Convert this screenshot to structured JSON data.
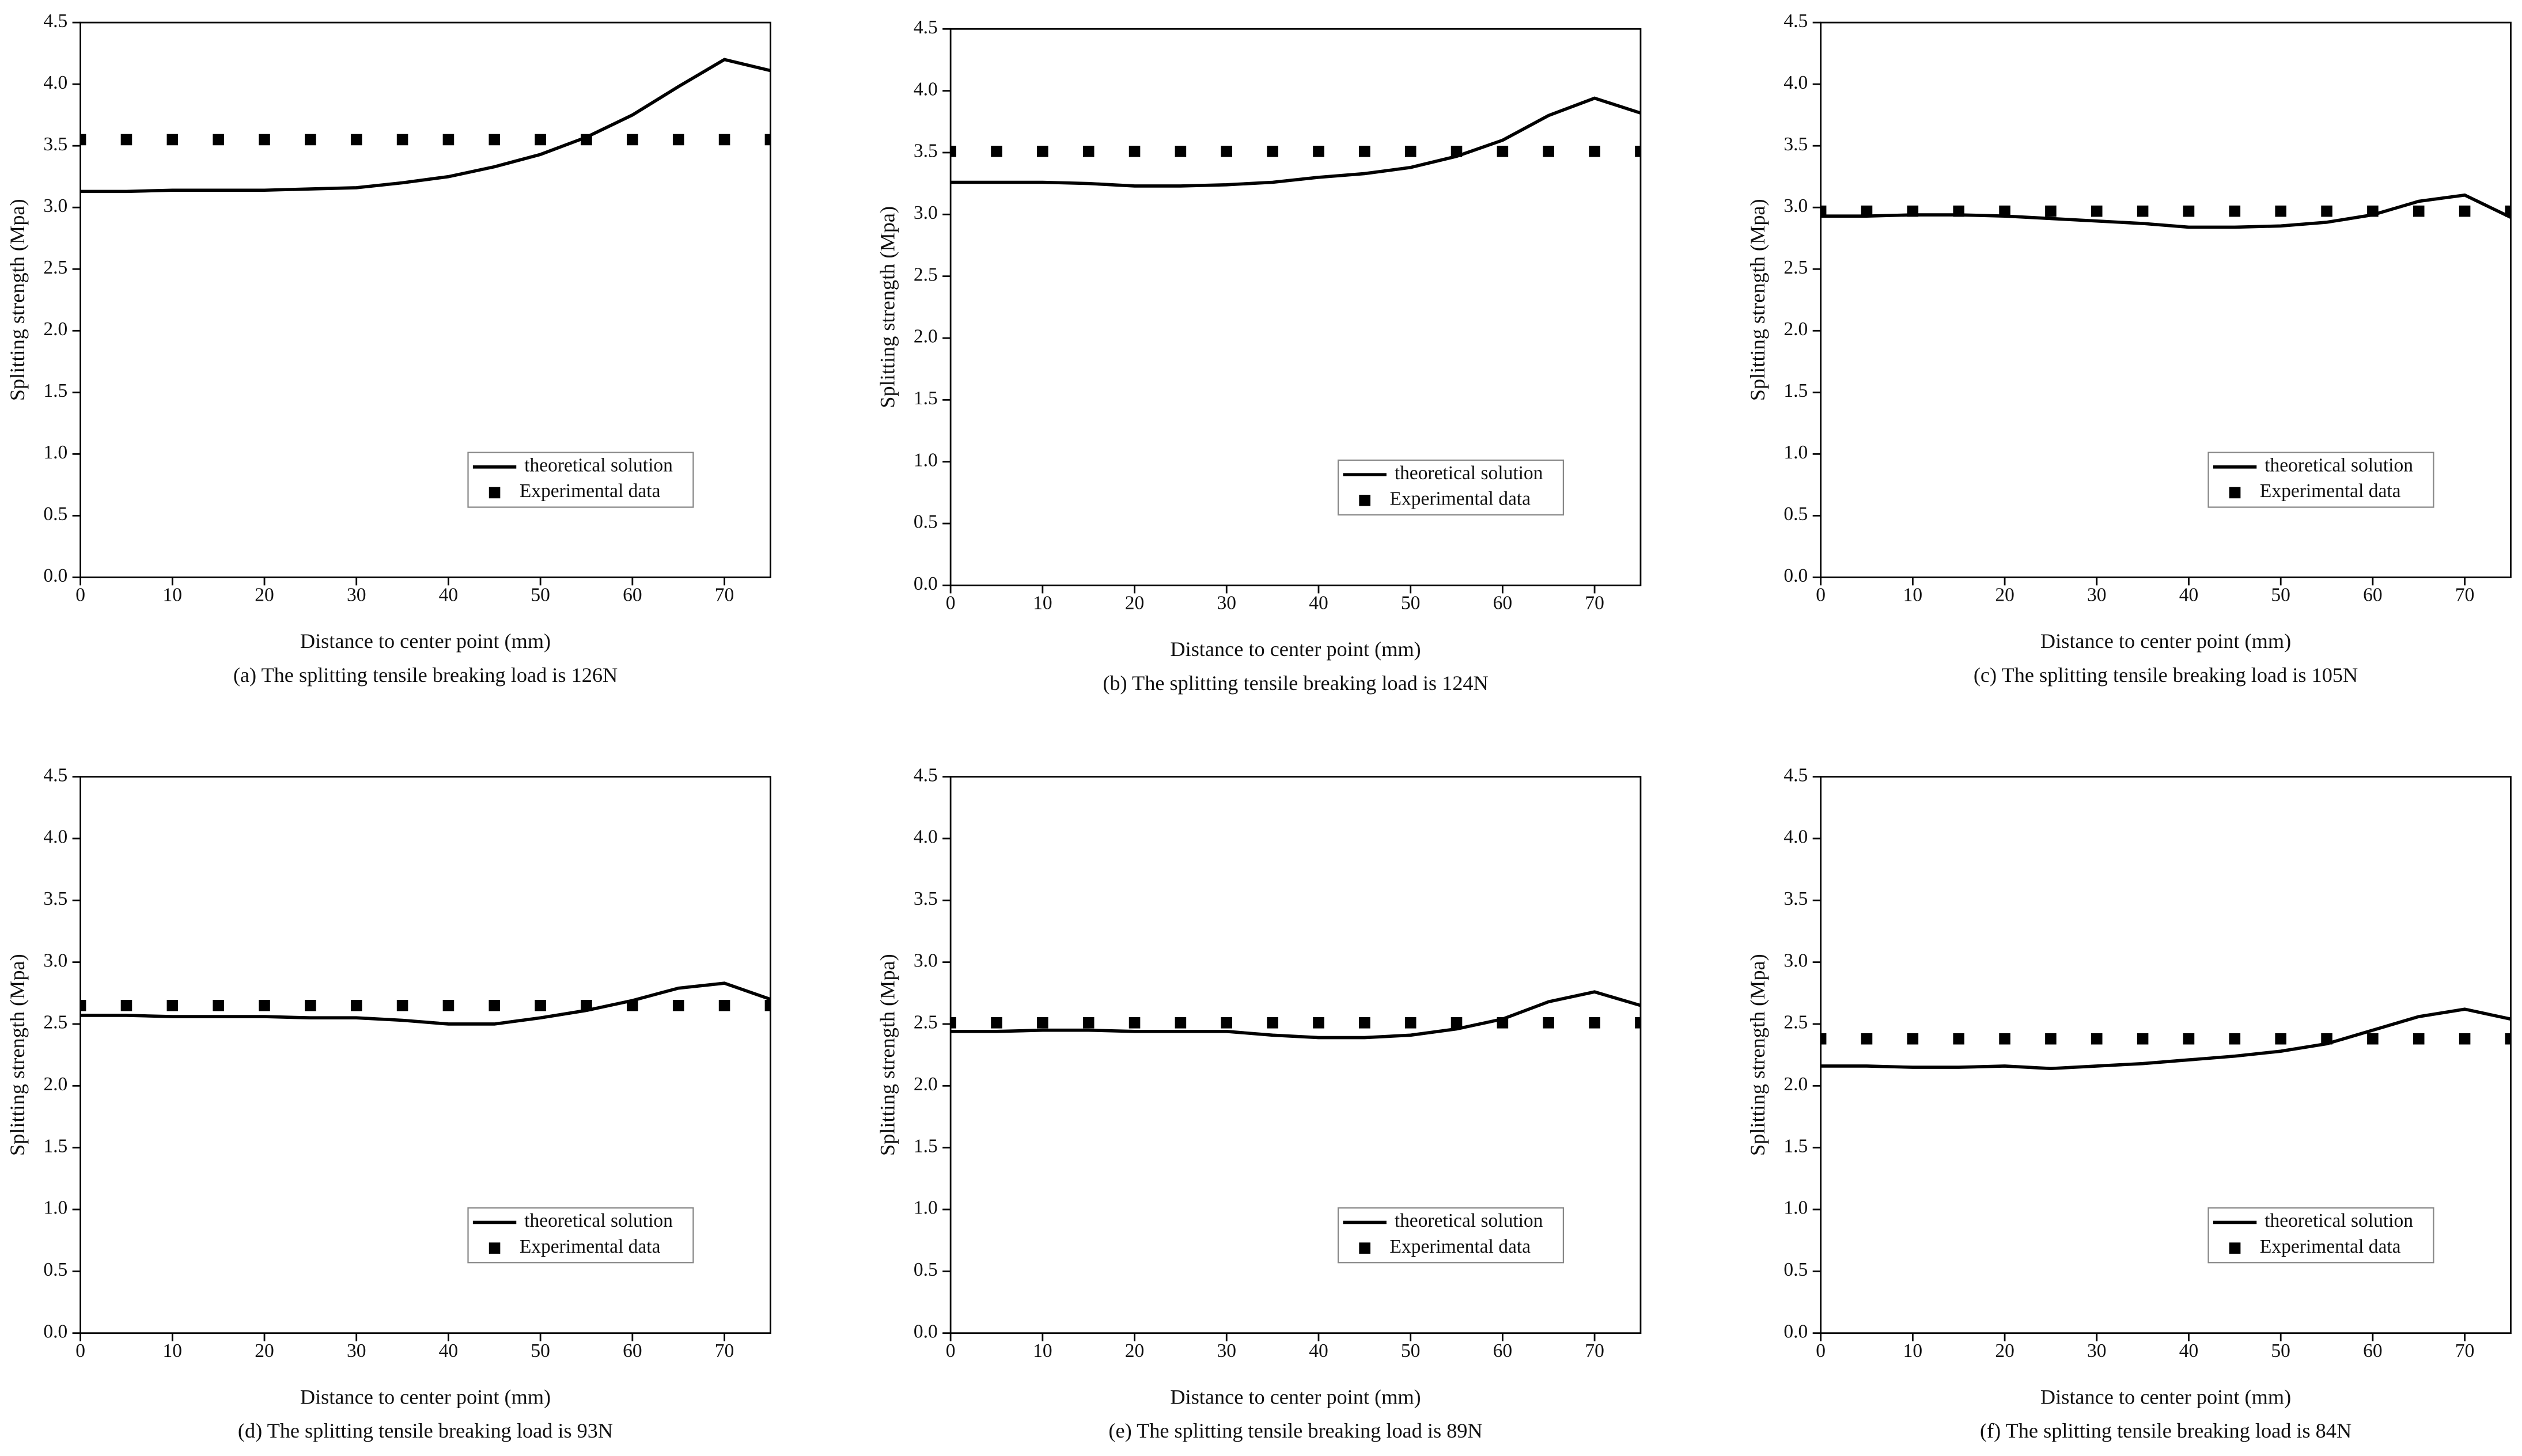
{
  "chart_data": [
    {
      "type": "line",
      "caption": "(a) The splitting tensile breaking load is 126N",
      "x_label": "Distance to center point (mm)",
      "y_label": "Splitting strength (Mpa)",
      "x": [
        0,
        5,
        10,
        15,
        20,
        25,
        30,
        35,
        40,
        45,
        50,
        55,
        60,
        65,
        70,
        75
      ],
      "series": [
        {
          "name": "theoretical solution",
          "color": "#000000",
          "style": "line",
          "values": [
            3.13,
            3.13,
            3.14,
            3.14,
            3.14,
            3.15,
            3.16,
            3.2,
            3.25,
            3.33,
            3.43,
            3.57,
            3.75,
            3.98,
            4.2,
            4.11
          ]
        },
        {
          "name": "Experimental data",
          "color": "#000000",
          "style": "markers",
          "values": [
            3.55,
            3.55,
            3.55,
            3.55,
            3.55,
            3.55,
            3.55,
            3.55,
            3.55,
            3.55,
            3.55,
            3.55,
            3.55,
            3.55,
            3.55,
            3.55
          ]
        }
      ],
      "xlim": [
        0,
        75
      ],
      "ylim": [
        0,
        4.5
      ],
      "xticks": [
        0,
        10,
        20,
        30,
        40,
        50,
        60,
        70
      ],
      "yticks": [
        {
          "value": 0,
          "label": "0.0"
        },
        0.5,
        {
          "value": 1,
          "label": "1.0"
        },
        1.5,
        {
          "value": 2,
          "label": "2.0"
        },
        2.5,
        {
          "value": 3,
          "label": "3.0"
        },
        3.5,
        {
          "value": 4,
          "label": "4.0"
        },
        4.5
      ],
      "legend": "lower right"
    },
    {
      "type": "line",
      "caption": "(b) The splitting tensile breaking load is 124N",
      "x_label": "Distance to center point (mm)",
      "y_label": "Splitting strength (Mpa)",
      "x": [
        0,
        5,
        10,
        15,
        20,
        25,
        30,
        35,
        40,
        45,
        50,
        55,
        60,
        65,
        70,
        75
      ],
      "series": [
        {
          "name": "theoretical solution",
          "color": "#000000",
          "style": "line",
          "values": [
            3.26,
            3.26,
            3.26,
            3.25,
            3.23,
            3.23,
            3.24,
            3.26,
            3.3,
            3.33,
            3.38,
            3.47,
            3.6,
            3.8,
            3.94,
            3.82
          ]
        },
        {
          "name": "Experimental data",
          "color": "#000000",
          "style": "markers",
          "values": [
            3.51,
            3.51,
            3.51,
            3.51,
            3.51,
            3.51,
            3.51,
            3.51,
            3.51,
            3.51,
            3.51,
            3.51,
            3.51,
            3.51,
            3.51,
            3.51
          ]
        }
      ],
      "xlim": [
        0,
        75
      ],
      "ylim": [
        0,
        4.5
      ],
      "xticks": [
        0,
        10,
        20,
        30,
        40,
        50,
        60,
        70
      ],
      "yticks": [
        {
          "value": 0,
          "label": "0.0"
        },
        0.5,
        {
          "value": 1,
          "label": "1.0"
        },
        1.5,
        {
          "value": 2,
          "label": "2.0"
        },
        2.5,
        {
          "value": 3,
          "label": "3.0"
        },
        3.5,
        {
          "value": 4,
          "label": "4.0"
        },
        4.5
      ],
      "legend": "lower right"
    },
    {
      "type": "line",
      "caption": "(c) The splitting tensile breaking load is 105N",
      "x_label": "Distance to center point (mm)",
      "y_label": "Splitting strength (Mpa)",
      "x": [
        0,
        5,
        10,
        15,
        20,
        25,
        30,
        35,
        40,
        45,
        50,
        55,
        60,
        65,
        70,
        75
      ],
      "series": [
        {
          "name": "theoretical solution",
          "color": "#000000",
          "style": "line",
          "values": [
            2.93,
            2.93,
            2.94,
            2.94,
            2.93,
            2.91,
            2.89,
            2.87,
            2.84,
            2.84,
            2.85,
            2.88,
            2.94,
            3.05,
            3.1,
            2.92
          ]
        },
        {
          "name": "Experimental data",
          "color": "#000000",
          "style": "markers",
          "values": [
            2.97,
            2.97,
            2.97,
            2.97,
            2.97,
            2.97,
            2.97,
            2.97,
            2.97,
            2.97,
            2.97,
            2.97,
            2.97,
            2.97,
            2.97,
            2.97
          ]
        }
      ],
      "xlim": [
        0,
        75
      ],
      "ylim": [
        0,
        4.5
      ],
      "xticks": [
        0,
        10,
        20,
        30,
        40,
        50,
        60,
        70
      ],
      "yticks": [
        {
          "value": 0,
          "label": "0.0"
        },
        0.5,
        {
          "value": 1,
          "label": "1.0"
        },
        1.5,
        {
          "value": 2,
          "label": "2.0"
        },
        2.5,
        {
          "value": 3,
          "label": "3.0"
        },
        3.5,
        {
          "value": 4,
          "label": "4.0"
        },
        4.5
      ],
      "legend": "lower right"
    },
    {
      "type": "line",
      "caption": "(d) The splitting tensile breaking load is 93N",
      "x_label": "Distance to center point (mm)",
      "y_label": "Splitting strength (Mpa)",
      "x": [
        0,
        5,
        10,
        15,
        20,
        25,
        30,
        35,
        40,
        45,
        50,
        55,
        60,
        65,
        70,
        75
      ],
      "series": [
        {
          "name": "theoretical solution",
          "color": "#000000",
          "style": "line",
          "values": [
            2.57,
            2.57,
            2.56,
            2.56,
            2.56,
            2.55,
            2.55,
            2.53,
            2.5,
            2.5,
            2.55,
            2.61,
            2.69,
            2.79,
            2.83,
            2.7
          ]
        },
        {
          "name": "Experimental data",
          "color": "#000000",
          "style": "markers",
          "values": [
            2.65,
            2.65,
            2.65,
            2.65,
            2.65,
            2.65,
            2.65,
            2.65,
            2.65,
            2.65,
            2.65,
            2.65,
            2.65,
            2.65,
            2.65,
            2.65
          ]
        }
      ],
      "xlim": [
        0,
        75
      ],
      "ylim": [
        0,
        4.5
      ],
      "xticks": [
        0,
        10,
        20,
        30,
        40,
        50,
        60,
        70
      ],
      "yticks": [
        {
          "value": 0,
          "label": "0.0"
        },
        0.5,
        {
          "value": 1,
          "label": "1.0"
        },
        1.5,
        {
          "value": 2,
          "label": "2.0"
        },
        2.5,
        {
          "value": 3,
          "label": "3.0"
        },
        3.5,
        {
          "value": 4,
          "label": "4.0"
        },
        4.5
      ],
      "legend": "lower right"
    },
    {
      "type": "line",
      "caption": "(e) The splitting tensile breaking load is 89N",
      "x_label": "Distance to center point (mm)",
      "y_label": "Splitting strength (Mpa)",
      "x": [
        0,
        5,
        10,
        15,
        20,
        25,
        30,
        35,
        40,
        45,
        50,
        55,
        60,
        65,
        70,
        75
      ],
      "series": [
        {
          "name": "theoretical solution",
          "color": "#000000",
          "style": "line",
          "values": [
            2.44,
            2.44,
            2.45,
            2.45,
            2.44,
            2.44,
            2.44,
            2.41,
            2.39,
            2.39,
            2.41,
            2.46,
            2.54,
            2.68,
            2.76,
            2.65
          ]
        },
        {
          "name": "Experimental data",
          "color": "#000000",
          "style": "markers",
          "values": [
            2.51,
            2.51,
            2.51,
            2.51,
            2.51,
            2.51,
            2.51,
            2.51,
            2.51,
            2.51,
            2.51,
            2.51,
            2.51,
            2.51,
            2.51,
            2.51
          ]
        }
      ],
      "xlim": [
        0,
        75
      ],
      "ylim": [
        0,
        4.5
      ],
      "xticks": [
        0,
        10,
        20,
        30,
        40,
        50,
        60,
        70
      ],
      "yticks": [
        {
          "value": 0,
          "label": "0.0"
        },
        0.5,
        {
          "value": 1,
          "label": "1.0"
        },
        1.5,
        {
          "value": 2,
          "label": "2.0"
        },
        2.5,
        {
          "value": 3,
          "label": "3.0"
        },
        3.5,
        {
          "value": 4,
          "label": "4.0"
        },
        4.5
      ],
      "legend": "lower right"
    },
    {
      "type": "line",
      "caption": "(f) The splitting tensile breaking load is 84N",
      "x_label": "Distance to center point (mm)",
      "y_label": "Splitting strength (Mpa)",
      "x": [
        0,
        5,
        10,
        15,
        20,
        25,
        30,
        35,
        40,
        45,
        50,
        55,
        60,
        65,
        70,
        75
      ],
      "series": [
        {
          "name": "theoretical solution",
          "color": "#000000",
          "style": "line",
          "values": [
            2.16,
            2.16,
            2.15,
            2.15,
            2.16,
            2.14,
            2.16,
            2.18,
            2.21,
            2.24,
            2.28,
            2.34,
            2.45,
            2.56,
            2.62,
            2.54
          ]
        },
        {
          "name": "Experimental data",
          "color": "#000000",
          "style": "markers",
          "values": [
            2.38,
            2.38,
            2.38,
            2.38,
            2.38,
            2.38,
            2.38,
            2.38,
            2.38,
            2.38,
            2.38,
            2.38,
            2.38,
            2.38,
            2.38,
            2.38
          ]
        }
      ],
      "xlim": [
        0,
        75
      ],
      "ylim": [
        0,
        4.5
      ],
      "xticks": [
        0,
        10,
        20,
        30,
        40,
        50,
        60,
        70
      ],
      "yticks": [
        {
          "value": 0,
          "label": "0.0"
        },
        0.5,
        {
          "value": 1,
          "label": "1.0"
        },
        1.5,
        {
          "value": 2,
          "label": "2.0"
        },
        2.5,
        {
          "value": 3,
          "label": "3.0"
        },
        3.5,
        {
          "value": 4,
          "label": "4.0"
        },
        4.5
      ],
      "legend": "lower right"
    }
  ]
}
